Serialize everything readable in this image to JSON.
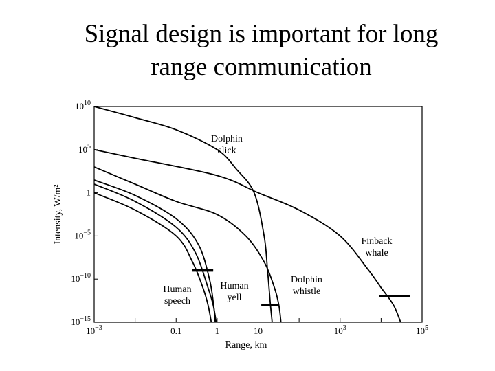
{
  "slide": {
    "title_line1": "Signal design is important for long",
    "title_line2": "range communication"
  },
  "chart_data": {
    "type": "line",
    "title": "",
    "xlabel": "Range, km",
    "ylabel": "Intensity, W/m²",
    "x_scale": "log",
    "y_scale": "log",
    "xlim": [
      0.001,
      100000
    ],
    "ylim": [
      1e-15,
      10000000000.0
    ],
    "x_ticks": [
      {
        "value": 0.001,
        "base": "10",
        "exp": "−3"
      },
      {
        "value": 0.1,
        "base": "0.1",
        "exp": ""
      },
      {
        "value": 1,
        "base": "1",
        "exp": ""
      },
      {
        "value": 10,
        "base": "10",
        "exp": ""
      },
      {
        "value": 1000,
        "base": "10",
        "exp": "3"
      },
      {
        "value": 100000,
        "base": "10",
        "exp": "5"
      }
    ],
    "y_ticks": [
      {
        "value": 10000000000.0,
        "base": "10",
        "exp": "10"
      },
      {
        "value": 100000.0,
        "base": "10",
        "exp": "5"
      },
      {
        "value": 1,
        "base": "1",
        "exp": ""
      },
      {
        "value": 1e-05,
        "base": "10",
        "exp": "−5"
      },
      {
        "value": 1e-10,
        "base": "10",
        "exp": "−10"
      },
      {
        "value": 1e-15,
        "base": "10",
        "exp": "−15"
      }
    ],
    "series": [
      {
        "name": "Dolphin click",
        "label_lines": [
          "Dolphin",
          "click"
        ],
        "points": [
          [
            0.001,
            10000000000.0
          ],
          [
            0.01,
            500000000.0
          ],
          [
            0.1,
            20000000.0
          ],
          [
            1,
            100000.0
          ],
          [
            3,
            500.0
          ],
          [
            8,
            1.0
          ],
          [
            14,
            1e-05
          ],
          [
            17,
            1e-09
          ],
          [
            20,
            1e-13
          ],
          [
            22,
            1e-15
          ]
        ],
        "threshold": [
          12,
          30,
          1e-13
        ]
      },
      {
        "name": "Dolphin whistle",
        "label_lines": [
          "Dolphin",
          "whistle"
        ],
        "points": [
          [
            0.001,
            1000.0
          ],
          [
            0.01,
            10.0
          ],
          [
            0.1,
            0.1
          ],
          [
            1,
            0.003
          ],
          [
            5,
            1e-05
          ],
          [
            14,
            1e-08
          ],
          [
            25,
            1e-11
          ],
          [
            32,
            1e-13
          ],
          [
            36,
            1e-15
          ]
        ],
        "threshold": [
          12,
          30,
          1e-13
        ]
      },
      {
        "name": "Finback whale",
        "label_lines": [
          "Finback",
          "whale"
        ],
        "points": [
          [
            0.001,
            100000.0
          ],
          [
            0.01,
            10000.0
          ],
          [
            1,
            100.0
          ],
          [
            10,
            1.0
          ],
          [
            100,
            0.01
          ],
          [
            1000,
            1e-05
          ],
          [
            5000,
            1e-09
          ],
          [
            10000,
            1e-11
          ],
          [
            20000,
            1e-13
          ],
          [
            30000,
            1e-15
          ]
        ],
        "threshold": [
          9000,
          50000,
          1e-12
        ]
      },
      {
        "name": "Human speech",
        "label_lines": [
          "Human",
          "speech"
        ],
        "points": [
          [
            0.001,
            1.0
          ],
          [
            0.01,
            0.01
          ],
          [
            0.1,
            1e-05
          ],
          [
            0.25,
            1e-08
          ],
          [
            0.45,
            1e-11
          ],
          [
            0.6,
            1e-13
          ],
          [
            0.72,
            1e-15
          ]
        ],
        "threshold": [
          0.25,
          0.8,
          1e-09
        ]
      },
      {
        "name": "Human yell",
        "label_lines": [
          "Human",
          "yell"
        ],
        "points": [
          [
            0.001,
            10.0
          ],
          [
            0.01,
            0.1
          ],
          [
            0.1,
            0.0001
          ],
          [
            0.3,
            1e-07
          ],
          [
            0.6,
            1e-11
          ],
          [
            0.8,
            1e-13
          ],
          [
            0.95,
            1e-15
          ]
        ],
        "threshold": [
          0.25,
          0.8,
          1e-09
        ]
      },
      {
        "name": "",
        "label_lines": [],
        "points": [
          [
            0.001,
            30.0
          ],
          [
            0.01,
            0.5
          ],
          [
            0.1,
            0.001
          ],
          [
            0.35,
            1e-06
          ],
          [
            0.65,
            1e-10
          ],
          [
            0.82,
            1e-13
          ],
          [
            0.9,
            1e-15
          ]
        ],
        "threshold": null
      }
    ]
  }
}
